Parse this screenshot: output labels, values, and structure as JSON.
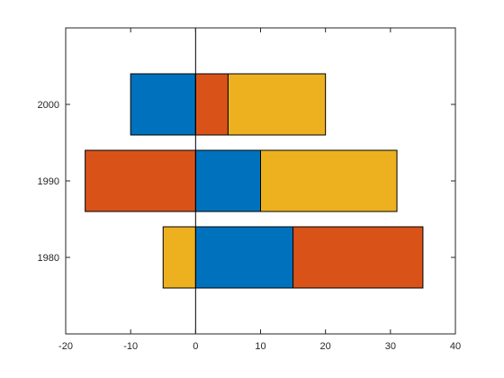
{
  "chart_data": {
    "type": "bar",
    "orientation": "horizontal",
    "stacked": true,
    "title": "",
    "xlabel": "",
    "ylabel": "",
    "categories": [
      "1980",
      "1990",
      "2000"
    ],
    "series": [
      {
        "color": "#0072BD",
        "values": [
          15,
          10,
          -10
        ]
      },
      {
        "color": "#D95319",
        "values": [
          20,
          -17,
          5
        ]
      },
      {
        "color": "#EDB120",
        "values": [
          -5,
          21,
          15
        ]
      }
    ],
    "xlim": [
      -20,
      40
    ],
    "xticks": [
      -20,
      -10,
      0,
      10,
      20,
      30,
      40
    ],
    "ylim": [
      1970,
      2010
    ],
    "yticks": [
      1980,
      1990,
      2000
    ],
    "grid": false,
    "legend": "none"
  }
}
